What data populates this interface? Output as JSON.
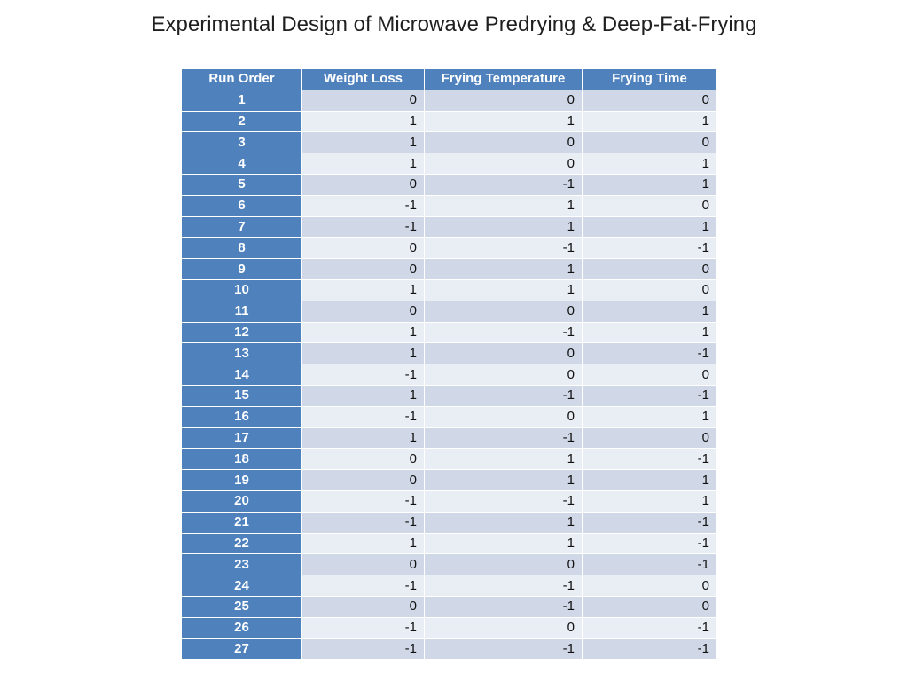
{
  "title": "Experimental Design of Microwave Predrying & Deep-Fat-Frying",
  "colors": {
    "header_bg": "#4f81bd",
    "row_band_dark": "#d0d8e8",
    "row_band_light": "#e9edf4"
  },
  "chart_data": {
    "type": "table",
    "columns": [
      "Run Order",
      "Weight Loss",
      "Frying Temperature",
      "Frying Time"
    ],
    "rows": [
      [
        "1",
        "0",
        "0",
        "0"
      ],
      [
        "2",
        "1",
        "1",
        "1"
      ],
      [
        "3",
        "1",
        "0",
        "0"
      ],
      [
        "4",
        "1",
        "0",
        "1"
      ],
      [
        "5",
        "0",
        "-1",
        "1"
      ],
      [
        "6",
        "-1",
        "1",
        "0"
      ],
      [
        "7",
        "-1",
        "1",
        "1"
      ],
      [
        "8",
        "0",
        "-1",
        "-1"
      ],
      [
        "9",
        "0",
        "1",
        "0"
      ],
      [
        "10",
        "1",
        "1",
        "0"
      ],
      [
        "11",
        "0",
        "0",
        "1"
      ],
      [
        "12",
        "1",
        "-1",
        "1"
      ],
      [
        "13",
        "1",
        "0",
        "-1"
      ],
      [
        "14",
        "-1",
        "0",
        "0"
      ],
      [
        "15",
        "1",
        "-1",
        "-1"
      ],
      [
        "16",
        "-1",
        "0",
        "1"
      ],
      [
        "17",
        "1",
        "-1",
        "0"
      ],
      [
        "18",
        "0",
        "1",
        "-1"
      ],
      [
        "19",
        "0",
        "1",
        "1"
      ],
      [
        "20",
        "-1",
        "-1",
        "1"
      ],
      [
        "21",
        "-1",
        "1",
        "-1"
      ],
      [
        "22",
        "1",
        "1",
        "-1"
      ],
      [
        "23",
        "0",
        "0",
        "-1"
      ],
      [
        "24",
        "-1",
        "-1",
        "0"
      ],
      [
        "25",
        "0",
        "-1",
        "0"
      ],
      [
        "26",
        "-1",
        "0",
        "-1"
      ],
      [
        "27",
        "-1",
        "-1",
        "-1"
      ]
    ]
  }
}
